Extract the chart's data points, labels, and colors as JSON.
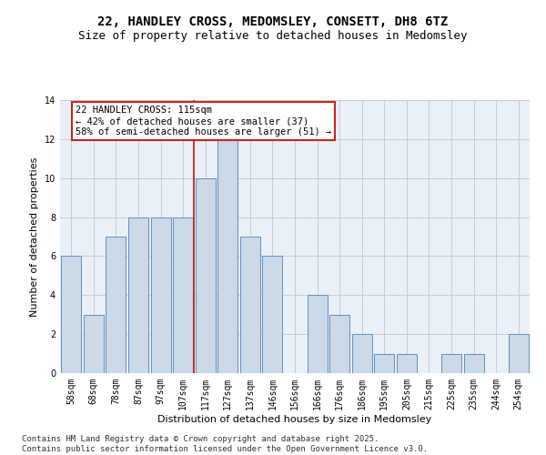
{
  "title_line1": "22, HANDLEY CROSS, MEDOMSLEY, CONSETT, DH8 6TZ",
  "title_line2": "Size of property relative to detached houses in Medomsley",
  "xlabel": "Distribution of detached houses by size in Medomsley",
  "ylabel": "Number of detached properties",
  "categories": [
    "58sqm",
    "68sqm",
    "78sqm",
    "87sqm",
    "97sqm",
    "107sqm",
    "117sqm",
    "127sqm",
    "137sqm",
    "146sqm",
    "156sqm",
    "166sqm",
    "176sqm",
    "186sqm",
    "195sqm",
    "205sqm",
    "215sqm",
    "225sqm",
    "235sqm",
    "244sqm",
    "254sqm"
  ],
  "values": [
    6,
    3,
    7,
    8,
    8,
    8,
    10,
    12,
    7,
    6,
    0,
    4,
    3,
    2,
    1,
    1,
    0,
    1,
    1,
    0,
    2
  ],
  "bar_color": "#ccd9e8",
  "bar_edge_color": "#6090c0",
  "vline_x": 5.5,
  "vline_color": "#bb1111",
  "annotation_text": "22 HANDLEY CROSS: 115sqm\n← 42% of detached houses are smaller (37)\n58% of semi-detached houses are larger (51) →",
  "annotation_box_color": "#ffffff",
  "annotation_box_edge": "#cc2222",
  "ylim": [
    0,
    14
  ],
  "yticks": [
    0,
    2,
    4,
    6,
    8,
    10,
    12,
    14
  ],
  "grid_color": "#c8ccd4",
  "bg_color": "#eaf0f8",
  "footer_line1": "Contains HM Land Registry data © Crown copyright and database right 2025.",
  "footer_line2": "Contains public sector information licensed under the Open Government Licence v3.0.",
  "title_fontsize": 10,
  "subtitle_fontsize": 9,
  "axis_label_fontsize": 8,
  "tick_fontsize": 7,
  "annotation_fontsize": 7.5,
  "footer_fontsize": 6.5
}
